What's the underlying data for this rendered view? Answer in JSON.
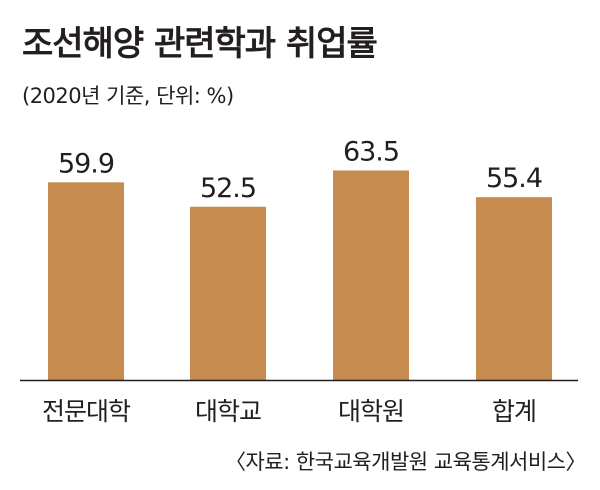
{
  "header": {
    "title": "조선해양 관련학과 취업률",
    "subtitle": "(2020년 기준, 단위: %)"
  },
  "footer": {
    "source": "〈자료: 한국교육개발원 교육통계서비스〉"
  },
  "colors": {
    "bar": "#c68b4e",
    "axis": "#231f20",
    "text": "#231f20"
  },
  "chart_data": {
    "type": "bar",
    "categories": [
      "전문대학",
      "대학교",
      "대학원",
      "합계"
    ],
    "values": [
      59.9,
      52.5,
      63.5,
      55.4
    ],
    "value_labels": [
      "59.9",
      "52.5",
      "63.5",
      "55.4"
    ],
    "title": "조선해양 관련학과 취업률",
    "subtitle": "(2020년 기준, 단위: %)",
    "xlabel": "",
    "ylabel": "",
    "ylim": [
      0,
      100
    ],
    "grid": false,
    "legend": "none"
  }
}
